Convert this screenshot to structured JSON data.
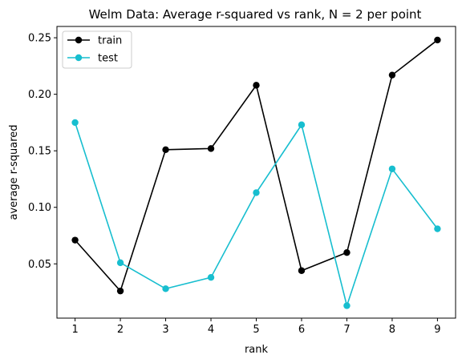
{
  "chart_data": {
    "type": "line",
    "title": "Welm Data: Average r-squared vs rank, N = 2 per point",
    "xlabel": "rank",
    "ylabel": "average r-squared",
    "x": [
      1,
      2,
      3,
      4,
      5,
      6,
      7,
      8,
      9
    ],
    "xticks": [
      "1",
      "2",
      "3",
      "4",
      "5",
      "6",
      "7",
      "8",
      "9"
    ],
    "yticks": [
      "0.05",
      "0.10",
      "0.15",
      "0.20",
      "0.25"
    ],
    "xlim": [
      0.6,
      9.4
    ],
    "ylim": [
      0.002,
      0.26
    ],
    "grid": false,
    "legend_position": "top-left",
    "series": [
      {
        "name": "train",
        "color": "#000000",
        "marker": "circle",
        "values": [
          0.071,
          0.026,
          0.151,
          0.152,
          0.208,
          0.044,
          0.06,
          0.217,
          0.248
        ]
      },
      {
        "name": "test",
        "color": "#17becf",
        "marker": "circle",
        "values": [
          0.175,
          0.051,
          0.028,
          0.038,
          0.113,
          0.173,
          0.013,
          0.134,
          0.081
        ]
      }
    ]
  }
}
